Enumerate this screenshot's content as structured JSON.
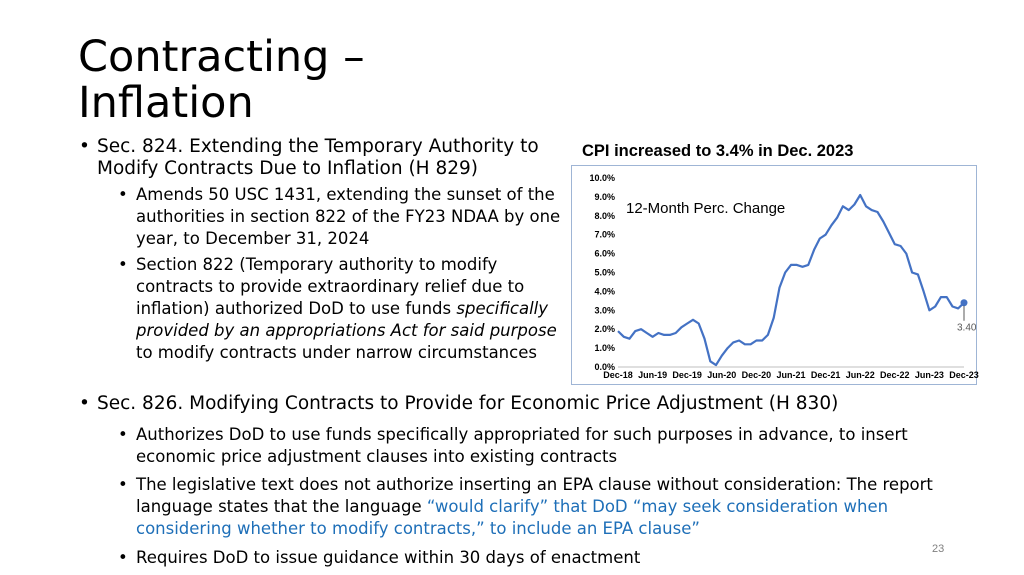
{
  "slide": {
    "title": "Contracting – Inflation",
    "page_number": "23"
  },
  "bullets": {
    "b1": "Sec. 824. Extending the Temporary Authority to Modify Contracts Due to Inflation (H 829)",
    "b1_1": "Amends 50 USC 1431, extending the sunset of the authorities in section 822 of the FY23 NDAA by one year, to December 31, 2024",
    "b1_2_a": "Section 822 (Temporary authority to modify contracts to provide extraordinary relief due to inflation) authorized DoD to use funds ",
    "b1_2_b": "specifically provided by an appropriations Act for said purpose",
    "b1_2_c": " to modify contracts under narrow circumstances",
    "b2": "Sec. 826. Modifying Contracts to Provide for Economic Price Adjustment (H 830)",
    "b2_1": "Authorizes DoD to use funds specifically appropriated for such purposes in advance, to insert economic price adjustment clauses into existing contracts",
    "b2_2_a": "The legislative text does not authorize inserting an EPA clause without consideration: The report language states that the language ",
    "b2_2_b": "“would clarify” that DoD “may seek consideration when considering whether to modify contracts,” to include an EPA clause”",
    "b2_3": "Requires DoD to issue guidance within 30 days of enactment"
  },
  "chart_data": {
    "type": "line",
    "title": "CPI  increased to 3.4% in Dec. 2023",
    "series": [
      {
        "name": "12-Month Perc. Change",
        "x": [
          "Dec-18",
          "Jan-19",
          "Feb-19",
          "Mar-19",
          "Apr-19",
          "May-19",
          "Jun-19",
          "Jul-19",
          "Aug-19",
          "Sep-19",
          "Oct-19",
          "Nov-19",
          "Dec-19",
          "Jan-20",
          "Feb-20",
          "Mar-20",
          "Apr-20",
          "May-20",
          "Jun-20",
          "Jul-20",
          "Aug-20",
          "Sep-20",
          "Oct-20",
          "Nov-20",
          "Dec-20",
          "Jan-21",
          "Feb-21",
          "Mar-21",
          "Apr-21",
          "May-21",
          "Jun-21",
          "Jul-21",
          "Aug-21",
          "Sep-21",
          "Oct-21",
          "Nov-21",
          "Dec-21",
          "Jan-22",
          "Feb-22",
          "Mar-22",
          "Apr-22",
          "May-22",
          "Jun-22",
          "Jul-22",
          "Aug-22",
          "Sep-22",
          "Oct-22",
          "Nov-22",
          "Dec-22",
          "Jan-23",
          "Feb-23",
          "Mar-23",
          "Apr-23",
          "May-23",
          "Jun-23",
          "Jul-23",
          "Aug-23",
          "Sep-23",
          "Oct-23",
          "Nov-23",
          "Dec-23"
        ],
        "values": [
          1.9,
          1.6,
          1.5,
          1.9,
          2.0,
          1.8,
          1.6,
          1.8,
          1.7,
          1.7,
          1.8,
          2.1,
          2.3,
          2.5,
          2.3,
          1.5,
          0.3,
          0.1,
          0.6,
          1.0,
          1.3,
          1.4,
          1.2,
          1.2,
          1.4,
          1.4,
          1.7,
          2.6,
          4.2,
          5.0,
          5.4,
          5.4,
          5.3,
          5.4,
          6.2,
          6.8,
          7.0,
          7.5,
          7.9,
          8.5,
          8.3,
          8.6,
          9.1,
          8.5,
          8.3,
          8.2,
          7.7,
          7.1,
          6.5,
          6.4,
          6.0,
          5.0,
          4.9,
          4.0,
          3.0,
          3.2,
          3.7,
          3.7,
          3.2,
          3.1,
          3.4
        ]
      }
    ],
    "x_tick_labels": [
      "Dec-18",
      "Jun-19",
      "Dec-19",
      "Jun-20",
      "Dec-20",
      "Jun-21",
      "Dec-21",
      "Jun-22",
      "Dec-22",
      "Jun-23",
      "Dec-23"
    ],
    "y_tick_labels": [
      "0.0%",
      "1.0%",
      "2.0%",
      "3.0%",
      "4.0%",
      "5.0%",
      "6.0%",
      "7.0%",
      "8.0%",
      "9.0%",
      "10.0%"
    ],
    "ylim": [
      0,
      10
    ],
    "annotation": "3.40",
    "legend": "top-left inside plot",
    "line_color": "#4472c4",
    "grid": false
  }
}
